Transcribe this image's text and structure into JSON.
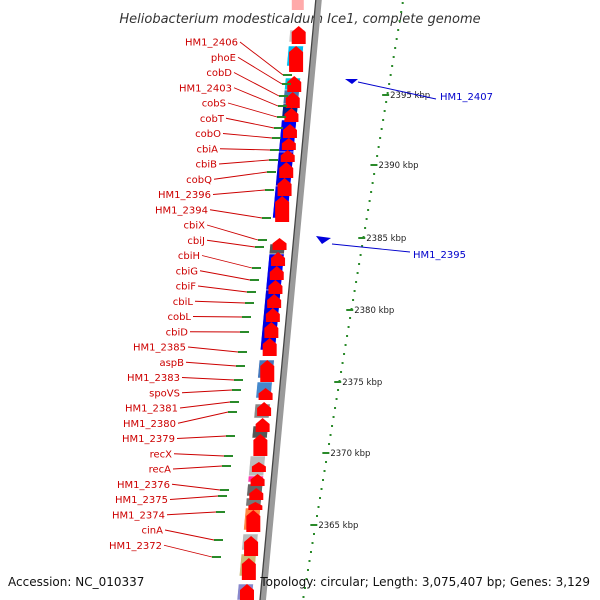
{
  "title": "Heliobacterium modesticaldum Ice1, complete genome",
  "footer": {
    "accession": "Accession: NC_010337",
    "summary": "Topology: circular; Length: 3,075,407 bp; Genes: 3,129"
  },
  "colors": {
    "label_red": "#cc0000",
    "label_blue": "#0000cc",
    "arrow_red": "#ff0000",
    "tick_green": "#2a8a2a",
    "backbone": "#9a9a9a"
  },
  "left_labels": [
    {
      "name": "HM1_2406"
    },
    {
      "name": "phoE"
    },
    {
      "name": "cobD"
    },
    {
      "name": "HM1_2403"
    },
    {
      "name": "cobS"
    },
    {
      "name": "cobT"
    },
    {
      "name": "cobO"
    },
    {
      "name": "cbiA"
    },
    {
      "name": "cbiB"
    },
    {
      "name": "cobQ"
    },
    {
      "name": "HM1_2396"
    },
    {
      "name": "HM1_2394"
    },
    {
      "name": "cbiX"
    },
    {
      "name": "cbiJ"
    },
    {
      "name": "cbiH"
    },
    {
      "name": "cbiG"
    },
    {
      "name": "cbiF"
    },
    {
      "name": "cbiL"
    },
    {
      "name": "cobL"
    },
    {
      "name": "cbiD"
    },
    {
      "name": "HM1_2385"
    },
    {
      "name": "aspB"
    },
    {
      "name": "HM1_2383"
    },
    {
      "name": "spoVS"
    },
    {
      "name": "HM1_2381"
    },
    {
      "name": "HM1_2380"
    },
    {
      "name": "HM1_2379"
    },
    {
      "name": "recX"
    },
    {
      "name": "recA"
    },
    {
      "name": "HM1_2376"
    },
    {
      "name": "HM1_2375"
    },
    {
      "name": "HM1_2374"
    },
    {
      "name": "cinA"
    },
    {
      "name": "HM1_2372"
    }
  ],
  "right_labels": [
    {
      "name": "HM1_2407"
    },
    {
      "name": "HM1_2395"
    }
  ],
  "scale_ticks": [
    {
      "label": "2395 kbp"
    },
    {
      "label": "2390 kbp"
    },
    {
      "label": "2385 kbp"
    },
    {
      "label": "2380 kbp"
    },
    {
      "label": "2375 kbp"
    },
    {
      "label": "2370 kbp"
    },
    {
      "label": "2365 kbp"
    }
  ],
  "cog_blocks": [
    {
      "color": "#c8c8c8"
    },
    {
      "color": "#00bbee"
    },
    {
      "color": "#00ccdd"
    },
    {
      "color": "#4477aa"
    },
    {
      "color": "#002288"
    },
    {
      "color": "#0000ee"
    },
    {
      "color": "#0000dd"
    },
    {
      "color": "#0000ee"
    },
    {
      "color": "#555555"
    },
    {
      "color": "#0000ee"
    },
    {
      "color": "#0000dd"
    },
    {
      "color": "#4477bb"
    },
    {
      "color": "#4488cc"
    },
    {
      "color": "#888888"
    },
    {
      "color": "#555555"
    },
    {
      "color": "#bbbbbb"
    },
    {
      "color": "#ff33aa"
    },
    {
      "color": "#666666"
    },
    {
      "color": "#777777"
    },
    {
      "color": "#ff8844"
    },
    {
      "color": "#bbbbbb"
    },
    {
      "color": "#ccbb77"
    },
    {
      "color": "#8888cc"
    }
  ]
}
